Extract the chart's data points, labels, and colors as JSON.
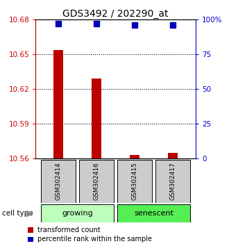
{
  "title": "GDS3492 / 202290_at",
  "samples": [
    "GSM302414",
    "GSM302416",
    "GSM302415",
    "GSM302417"
  ],
  "transformed_counts": [
    10.654,
    10.629,
    10.563,
    10.565
  ],
  "percentile_ranks": [
    97,
    97,
    96,
    96
  ],
  "y_min": 10.56,
  "y_max": 10.68,
  "y_ticks": [
    10.56,
    10.59,
    10.62,
    10.65,
    10.68
  ],
  "y_right_ticks": [
    0,
    25,
    50,
    75,
    100
  ],
  "y_right_tick_labels": [
    "0",
    "25",
    "50",
    "75",
    "100%"
  ],
  "bar_color": "#bb0000",
  "dot_color": "#0000bb",
  "left_tick_color": "#cc0000",
  "right_tick_color": "#0000cc",
  "groups": [
    {
      "label": "growing",
      "indices": [
        0,
        1
      ],
      "color": "#bbffbb"
    },
    {
      "label": "senescent",
      "indices": [
        2,
        3
      ],
      "color": "#55ee55"
    }
  ],
  "cell_type_label": "cell type",
  "legend_items": [
    {
      "color": "#bb0000",
      "label": "transformed count"
    },
    {
      "color": "#0000bb",
      "label": "percentile rank within the sample"
    }
  ],
  "bar_width": 0.25,
  "dot_size": 28,
  "sample_box_color": "#cccccc",
  "title_fontsize": 10,
  "tick_fontsize": 7.5,
  "label_fontsize": 8
}
